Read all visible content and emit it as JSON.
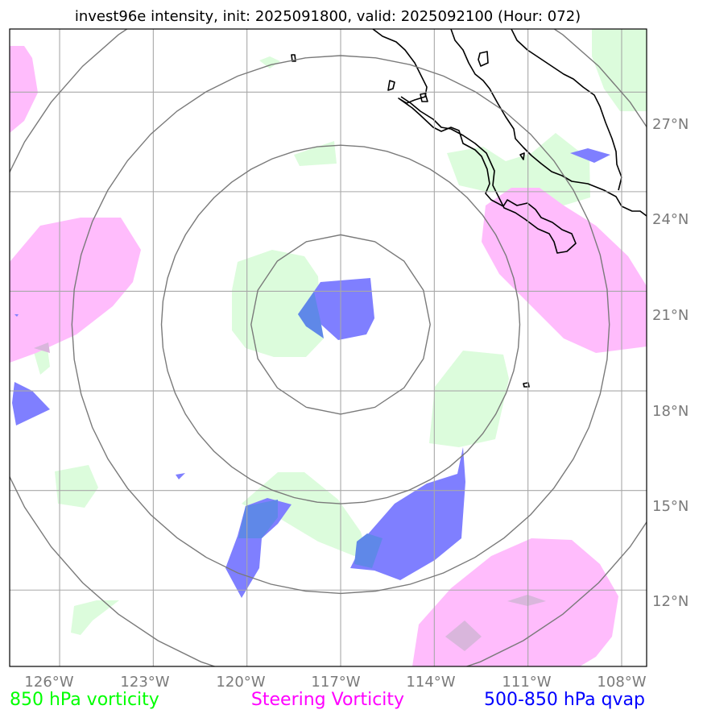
{
  "title": "invest96e intensity, init: 2025091800, valid: 2025092100 (Hour: 072)",
  "map": {
    "center_lon": -117,
    "center_lat": 20,
    "lon_min": -127.6,
    "lon_max": -107.2,
    "lat_min": 9.7,
    "lat_max": 28.9,
    "lon_ticks": [
      -126,
      -123,
      -120,
      -117,
      -114,
      -111,
      -108
    ],
    "lat_ticks": [
      12,
      15,
      18,
      21,
      24,
      27
    ],
    "lon_tick_labels": [
      "126°W",
      "123°W",
      "120°W",
      "117°W",
      "114°W",
      "111°W",
      "108°W"
    ],
    "lat_tick_labels": [
      "12°N",
      "15°N",
      "18°N",
      "21°N",
      "24°N",
      "27°N"
    ],
    "range_rings_deg": [
      2.7,
      5.4,
      8.1,
      11.0
    ]
  },
  "legend": {
    "vort850": "850 hPa vorticity",
    "steering": "Steering Vorticity",
    "qvap": "500-850 hPa qvap"
  },
  "colors": {
    "vort850": "#00ff00",
    "steering": "#ff00ff",
    "qvap": "#0000ff",
    "vort850_fill": "#dcfcdc",
    "steering_fill": "#ffbcfc",
    "qvap_fill": "#7f7fff",
    "grid": "#a8a8a8",
    "ring": "#7a7a7a",
    "coast": "#000000"
  }
}
